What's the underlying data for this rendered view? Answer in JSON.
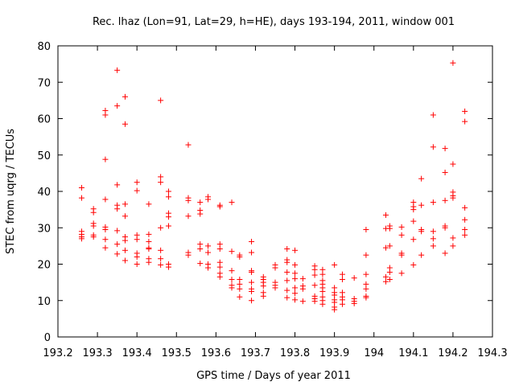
{
  "chart_data": {
    "type": "scatter",
    "title": "Rec. lhaz (Lon=91, Lat=29, h=HE), days 193-194, 2011, window 001",
    "xlabel": "GPS time / Days of year 2011",
    "ylabel": "STEC from uqrg / TECUs",
    "xlim": [
      193.2,
      194.3
    ],
    "ylim": [
      0,
      80
    ],
    "x_ticks": [
      193.2,
      193.3,
      193.4,
      193.5,
      193.6,
      193.7,
      193.8,
      193.9,
      194,
      194.1,
      194.2,
      194.3
    ],
    "x_tick_labels": [
      "193.2",
      "193.3",
      "193.4",
      "193.5",
      "193.6",
      "193.7",
      "193.8",
      "193.9",
      "194",
      "194.1",
      "194.2",
      "194.3"
    ],
    "y_ticks": [
      0,
      10,
      20,
      30,
      40,
      50,
      60,
      70,
      80
    ],
    "y_tick_labels": [
      "0",
      "10",
      "20",
      "30",
      "40",
      "50",
      "60",
      "70",
      "80"
    ],
    "grid": false,
    "legend": "none",
    "marker": "plus",
    "marker_color": "#ff0000",
    "points": [
      [
        193.26,
        41
      ],
      [
        193.26,
        38.2
      ],
      [
        193.26,
        29
      ],
      [
        193.26,
        28.2
      ],
      [
        193.26,
        27.5
      ],
      [
        193.26,
        27
      ],
      [
        193.29,
        35.2
      ],
      [
        193.29,
        34.2
      ],
      [
        193.29,
        31.2
      ],
      [
        193.29,
        30.5
      ],
      [
        193.29,
        28
      ],
      [
        193.29,
        27.5
      ],
      [
        193.32,
        62.2
      ],
      [
        193.32,
        61
      ],
      [
        193.32,
        48.8
      ],
      [
        193.32,
        37.8
      ],
      [
        193.32,
        30.2
      ],
      [
        193.32,
        29.5
      ],
      [
        193.32,
        26.8
      ],
      [
        193.32,
        24.5
      ],
      [
        193.35,
        73.3
      ],
      [
        193.35,
        63.5
      ],
      [
        193.35,
        41.8
      ],
      [
        193.35,
        36.2
      ],
      [
        193.35,
        35.2
      ],
      [
        193.35,
        29.2
      ],
      [
        193.35,
        25.5
      ],
      [
        193.35,
        22.8
      ],
      [
        193.37,
        66
      ],
      [
        193.37,
        58.5
      ],
      [
        193.37,
        36.5
      ],
      [
        193.37,
        33.2
      ],
      [
        193.37,
        27.5
      ],
      [
        193.37,
        26.5
      ],
      [
        193.37,
        23.8
      ],
      [
        193.37,
        21
      ],
      [
        193.4,
        42.5
      ],
      [
        193.4,
        40.2
      ],
      [
        193.4,
        28
      ],
      [
        193.4,
        26.8
      ],
      [
        193.4,
        23
      ],
      [
        193.4,
        22
      ],
      [
        193.4,
        20
      ],
      [
        193.43,
        36.5
      ],
      [
        193.43,
        28.2
      ],
      [
        193.43,
        26.2
      ],
      [
        193.43,
        24.5
      ],
      [
        193.43,
        24.2
      ],
      [
        193.43,
        21.5
      ],
      [
        193.43,
        20.5
      ],
      [
        193.46,
        65
      ],
      [
        193.46,
        44
      ],
      [
        193.46,
        42.5
      ],
      [
        193.46,
        30
      ],
      [
        193.46,
        23.8
      ],
      [
        193.46,
        21.5
      ],
      [
        193.46,
        19.8
      ],
      [
        193.48,
        40
      ],
      [
        193.48,
        38.5
      ],
      [
        193.48,
        34
      ],
      [
        193.48,
        33
      ],
      [
        193.48,
        30.5
      ],
      [
        193.48,
        20
      ],
      [
        193.48,
        19.2
      ],
      [
        193.53,
        52.8
      ],
      [
        193.53,
        38.2
      ],
      [
        193.53,
        37.5
      ],
      [
        193.53,
        33.2
      ],
      [
        193.53,
        23.2
      ],
      [
        193.53,
        22.5
      ],
      [
        193.56,
        37
      ],
      [
        193.56,
        34.8
      ],
      [
        193.56,
        33.8
      ],
      [
        193.56,
        25.5
      ],
      [
        193.56,
        24.2
      ],
      [
        193.56,
        20.2
      ],
      [
        193.58,
        38.5
      ],
      [
        193.58,
        37.8
      ],
      [
        193.58,
        25
      ],
      [
        193.58,
        23.2
      ],
      [
        193.58,
        20
      ],
      [
        193.58,
        19
      ],
      [
        193.61,
        36.2
      ],
      [
        193.61,
        35.8
      ],
      [
        193.61,
        25.5
      ],
      [
        193.61,
        24.2
      ],
      [
        193.61,
        20.5
      ],
      [
        193.61,
        19.2
      ],
      [
        193.61,
        17.5
      ],
      [
        193.61,
        16.5
      ],
      [
        193.64,
        37
      ],
      [
        193.64,
        23.5
      ],
      [
        193.64,
        18.2
      ],
      [
        193.64,
        15.8
      ],
      [
        193.64,
        14.2
      ],
      [
        193.64,
        13.5
      ],
      [
        193.66,
        22.5
      ],
      [
        193.66,
        22
      ],
      [
        193.66,
        15.8
      ],
      [
        193.66,
        14.5
      ],
      [
        193.66,
        13.2
      ],
      [
        193.66,
        11
      ],
      [
        193.69,
        26.2
      ],
      [
        193.69,
        23.2
      ],
      [
        193.69,
        18.2
      ],
      [
        193.69,
        17.8
      ],
      [
        193.69,
        15
      ],
      [
        193.69,
        13.2
      ],
      [
        193.69,
        12.5
      ],
      [
        193.69,
        10
      ],
      [
        193.72,
        16.5
      ],
      [
        193.72,
        15.8
      ],
      [
        193.72,
        15
      ],
      [
        193.72,
        14
      ],
      [
        193.72,
        12.2
      ],
      [
        193.72,
        11.2
      ],
      [
        193.75,
        19.8
      ],
      [
        193.75,
        19
      ],
      [
        193.75,
        15
      ],
      [
        193.75,
        14.2
      ],
      [
        193.75,
        13.5
      ],
      [
        193.78,
        24.2
      ],
      [
        193.78,
        21.2
      ],
      [
        193.78,
        20.5
      ],
      [
        193.78,
        17.8
      ],
      [
        193.78,
        15.5
      ],
      [
        193.78,
        12.8
      ],
      [
        193.78,
        10.8
      ],
      [
        193.8,
        23.8
      ],
      [
        193.8,
        19.8
      ],
      [
        193.8,
        17.5
      ],
      [
        193.8,
        16
      ],
      [
        193.8,
        13.5
      ],
      [
        193.8,
        12
      ],
      [
        193.8,
        10.2
      ],
      [
        193.82,
        16
      ],
      [
        193.82,
        14
      ],
      [
        193.82,
        13.2
      ],
      [
        193.82,
        9.8
      ],
      [
        193.85,
        19.5
      ],
      [
        193.85,
        18.5
      ],
      [
        193.85,
        17
      ],
      [
        193.85,
        14.2
      ],
      [
        193.85,
        11.2
      ],
      [
        193.85,
        10.5
      ],
      [
        193.85,
        9.8
      ],
      [
        193.87,
        18.5
      ],
      [
        193.87,
        17.2
      ],
      [
        193.87,
        15.5
      ],
      [
        193.87,
        14.5
      ],
      [
        193.87,
        13.5
      ],
      [
        193.87,
        12.5
      ],
      [
        193.87,
        11
      ],
      [
        193.87,
        10
      ],
      [
        193.87,
        9
      ],
      [
        193.9,
        19.8
      ],
      [
        193.9,
        13.5
      ],
      [
        193.9,
        12.2
      ],
      [
        193.9,
        11.5
      ],
      [
        193.9,
        10.2
      ],
      [
        193.9,
        9.5
      ],
      [
        193.9,
        8.2
      ],
      [
        193.9,
        7.5
      ],
      [
        193.92,
        17.2
      ],
      [
        193.92,
        15.8
      ],
      [
        193.92,
        12.2
      ],
      [
        193.92,
        11
      ],
      [
        193.92,
        10.2
      ],
      [
        193.92,
        9
      ],
      [
        193.95,
        16.2
      ],
      [
        193.95,
        10.5
      ],
      [
        193.95,
        9.8
      ],
      [
        193.95,
        9.2
      ],
      [
        193.98,
        29.5
      ],
      [
        193.98,
        22.5
      ],
      [
        193.98,
        17.2
      ],
      [
        193.98,
        14.5
      ],
      [
        193.98,
        13.2
      ],
      [
        193.98,
        11.2
      ],
      [
        193.98,
        10.8
      ],
      [
        194.03,
        33.5
      ],
      [
        194.03,
        29.8
      ],
      [
        194.03,
        24.5
      ],
      [
        194.03,
        16.5
      ],
      [
        194.03,
        15.2
      ],
      [
        194.04,
        30.5
      ],
      [
        194.04,
        29.8
      ],
      [
        194.04,
        25
      ],
      [
        194.04,
        19
      ],
      [
        194.04,
        17.8
      ],
      [
        194.04,
        15.8
      ],
      [
        194.07,
        30.2
      ],
      [
        194.07,
        28
      ],
      [
        194.07,
        23
      ],
      [
        194.07,
        22.5
      ],
      [
        194.07,
        17.5
      ],
      [
        194.1,
        37
      ],
      [
        194.1,
        35.8
      ],
      [
        194.1,
        35
      ],
      [
        194.1,
        31.8
      ],
      [
        194.1,
        26.8
      ],
      [
        194.1,
        19.8
      ],
      [
        194.12,
        43.5
      ],
      [
        194.12,
        36.2
      ],
      [
        194.12,
        29.5
      ],
      [
        194.12,
        29
      ],
      [
        194.12,
        22.5
      ],
      [
        194.15,
        61
      ],
      [
        194.15,
        52.2
      ],
      [
        194.15,
        37
      ],
      [
        194.15,
        29
      ],
      [
        194.15,
        27
      ],
      [
        194.15,
        25
      ],
      [
        194.18,
        51.8
      ],
      [
        194.18,
        45.2
      ],
      [
        194.18,
        37.5
      ],
      [
        194.18,
        30.5
      ],
      [
        194.18,
        30
      ],
      [
        194.18,
        23
      ],
      [
        194.2,
        75.3
      ],
      [
        194.2,
        47.5
      ],
      [
        194.2,
        39.8
      ],
      [
        194.2,
        38.8
      ],
      [
        194.2,
        38.2
      ],
      [
        194.2,
        27.2
      ],
      [
        194.2,
        25
      ],
      [
        194.23,
        62
      ],
      [
        194.23,
        59.2
      ],
      [
        194.23,
        35.5
      ],
      [
        194.23,
        32.2
      ],
      [
        194.23,
        29.5
      ],
      [
        194.23,
        28
      ]
    ]
  }
}
